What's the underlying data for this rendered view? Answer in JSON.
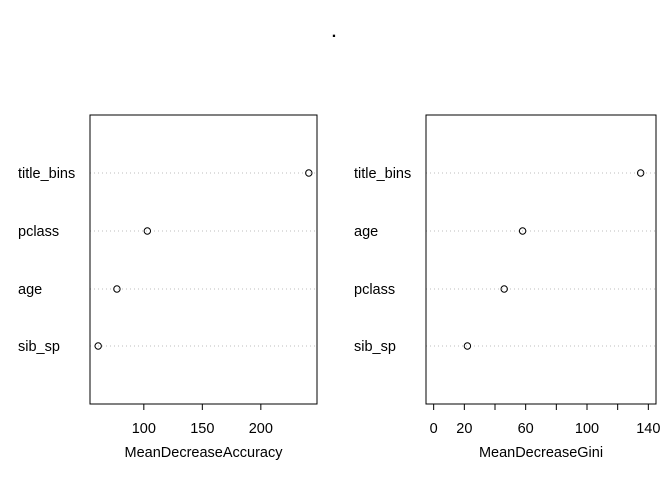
{
  "page": {
    "title": "."
  },
  "chart_data": [
    {
      "type": "scatter",
      "xlabel": "MeanDecreaseAccuracy",
      "xlim": [
        54,
        248
      ],
      "x_ticks": [
        {
          "value": 100,
          "label": "100"
        },
        {
          "value": 150,
          "label": "150"
        },
        {
          "value": 200,
          "label": "200"
        }
      ],
      "categories": [
        "title_bins",
        "pclass",
        "age",
        "sib_sp"
      ],
      "values": [
        241,
        103,
        77,
        61
      ],
      "grid": "dotted-horizontal"
    },
    {
      "type": "scatter",
      "xlabel": "MeanDecreaseGini",
      "xlim": [
        -5,
        145
      ],
      "x_ticks": [
        {
          "value": 0,
          "label": "0"
        },
        {
          "value": 20,
          "label": "20"
        },
        {
          "value": 40,
          "label": ""
        },
        {
          "value": 60,
          "label": "60"
        },
        {
          "value": 80,
          "label": ""
        },
        {
          "value": 100,
          "label": "100"
        },
        {
          "value": 120,
          "label": ""
        },
        {
          "value": 140,
          "label": "140"
        }
      ],
      "categories": [
        "title_bins",
        "age",
        "pclass",
        "sib_sp"
      ],
      "values": [
        135,
        58,
        46,
        22
      ],
      "grid": "dotted-horizontal"
    }
  ]
}
